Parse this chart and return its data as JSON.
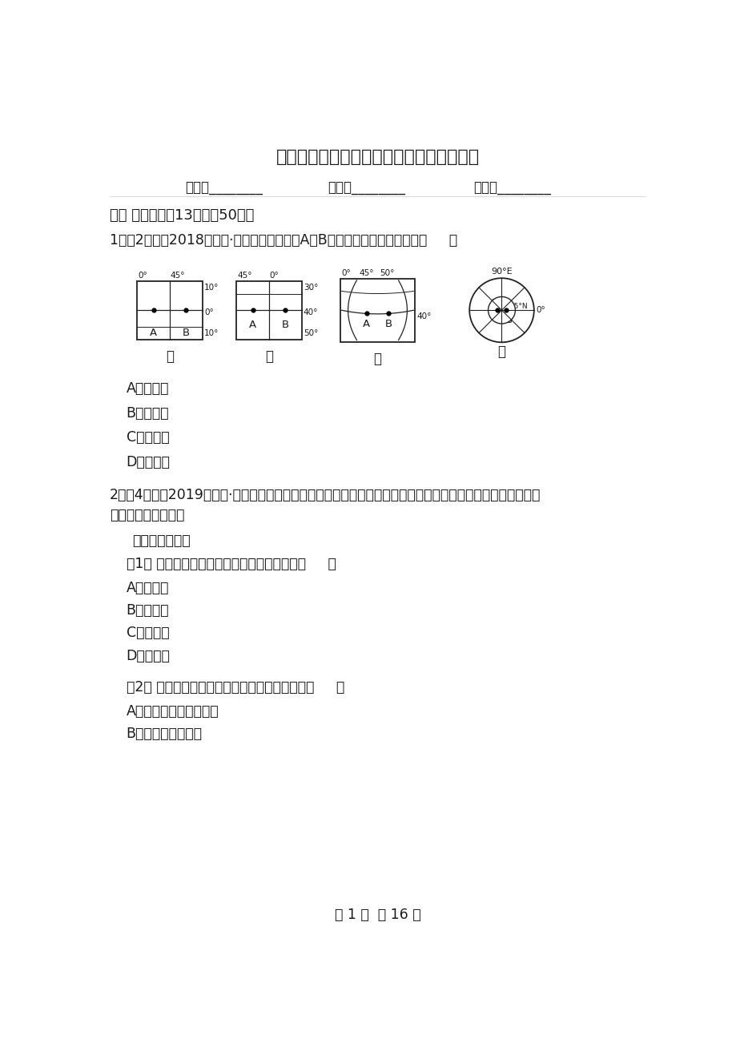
{
  "title": "安徽省宣城市高一下学期地理开学考试试卷",
  "header_fields": [
    "姓名：________",
    "班级：________",
    "成绩：________"
  ],
  "section1": "一、 选择题（共13题；共50分）",
  "q1": "1．（2分）（2018高一上·长春月考）读图，A与B两点之间的距离相等的是（     ）",
  "q1_options": [
    "A．甲、丁",
    "B．甲、乙",
    "C．乙、丙",
    "D．丙、丁"
  ],
  "q2_intro": "2．（4分）（2019高二上·静海月考）中国科幻大片《流浪地球》讲述了未来太阳将毁灭，人类驱动地球逃离，",
  "q2_intro2": "寻找新家园的故事。",
  "q2_sub": "完成下面小题。",
  "q2_1": "（1） 本片中人类驱动地球逃离，就是要脱离（     ）",
  "q2_1_options": [
    "A．地月系",
    "B．太阳系",
    "C．银河系",
    "D．总星系"
  ],
  "q2_2": "（2） 发生在光球层和色球层的太阳活动分别是（     ）",
  "q2_2_options": [
    "A．太阳黑子、太阳风暴",
    "B．耀斑、太阳黑子"
  ],
  "footer": "第 1 页  共 16 页",
  "bg_color": "#ffffff",
  "text_color": "#1a1a1a",
  "title_fontsize": 16,
  "body_fontsize": 13,
  "small_fontsize": 8
}
